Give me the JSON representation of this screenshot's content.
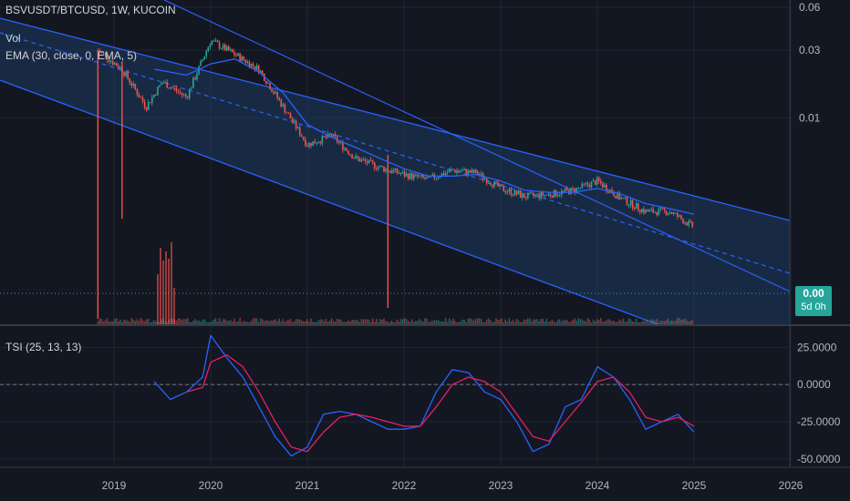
{
  "header": {
    "symbol": "BSVUSDT/BTCUSD, 1W, KUCOIN",
    "vol_label": "Vol",
    "ema_label": "EMA (30, close, 0, EMA, 5)",
    "tsi_label": "TSI (25, 13, 13)"
  },
  "price_tag": {
    "value": "0.00",
    "countdown": "5d 0h"
  },
  "colors": {
    "background": "#131722",
    "channel_fill": "#1e3a5f",
    "channel_line": "#2962ff",
    "up_candle": "#26a69a",
    "down_candle": "#ef5350",
    "tsi_line": "#2962ff",
    "tsi_signal": "#e91e63",
    "price_line": "#26a69a"
  },
  "chart_data": [
    {
      "type": "candlestick",
      "title": "BSVUSDT/BTCUSD, 1W, KUCOIN",
      "y_scale": "log",
      "y_ticks": [
        "0.06",
        "0.03",
        "0.01"
      ],
      "x_ticks": [
        "2019",
        "2020",
        "2021",
        "2022",
        "2023",
        "2024",
        "2025",
        "2026"
      ],
      "series": [
        {
          "name": "Price (close, approx.)",
          "x": [
            "2018-11",
            "2019-02",
            "2019-05",
            "2019-07",
            "2019-10",
            "2020-01",
            "2020-04",
            "2020-07",
            "2020-10",
            "2021-01",
            "2021-04",
            "2021-07",
            "2021-10",
            "2022-01",
            "2022-04",
            "2022-07",
            "2022-10",
            "2023-01",
            "2023-04",
            "2023-07",
            "2023-10",
            "2024-01",
            "2024-04",
            "2024-07",
            "2024-10",
            "2025-01"
          ],
          "values": [
            0.03,
            0.022,
            0.012,
            0.018,
            0.014,
            0.035,
            0.028,
            0.022,
            0.012,
            0.0065,
            0.0075,
            0.0052,
            0.0045,
            0.004,
            0.0037,
            0.0043,
            0.0041,
            0.0032,
            0.0028,
            0.0029,
            0.0031,
            0.0036,
            0.0027,
            0.0022,
            0.0022,
            0.0017
          ]
        },
        {
          "name": "EMA (30, close, 0, EMA, 5)",
          "x": [
            "2019-06",
            "2019-10",
            "2020-01",
            "2020-04",
            "2020-07",
            "2020-10",
            "2021-01",
            "2021-04",
            "2021-07",
            "2021-10",
            "2022-01",
            "2022-04",
            "2022-07",
            "2022-10",
            "2023-01",
            "2023-04",
            "2023-07",
            "2023-10",
            "2024-01",
            "2024-04",
            "2024-07",
            "2024-10",
            "2025-01"
          ],
          "values": [
            0.022,
            0.02,
            0.024,
            0.026,
            0.021,
            0.015,
            0.009,
            0.0073,
            0.0062,
            0.0052,
            0.0044,
            0.0039,
            0.0039,
            0.004,
            0.0036,
            0.0031,
            0.003,
            0.003,
            0.0032,
            0.0029,
            0.0025,
            0.0023,
            0.0021
          ]
        }
      ],
      "volume_spikes": [
        {
          "x": "2019-07",
          "value": "high"
        },
        {
          "x": "2021-11",
          "value": "wick"
        }
      ],
      "last_price": "0.00"
    },
    {
      "type": "line",
      "title": "TSI (25, 13, 13)",
      "y_ticks": [
        "25.0000",
        "0.0000",
        "-25.0000",
        "-50.0000"
      ],
      "ylim": [
        -55,
        35
      ],
      "series": [
        {
          "name": "TSI",
          "x": [
            "2019-06",
            "2019-08",
            "2019-10",
            "2019-12",
            "2020-01",
            "2020-03",
            "2020-05",
            "2020-07",
            "2020-09",
            "2020-11",
            "2021-01",
            "2021-03",
            "2021-05",
            "2021-07",
            "2021-09",
            "2021-11",
            "2022-01",
            "2022-03",
            "2022-05",
            "2022-07",
            "2022-09",
            "2022-11",
            "2023-01",
            "2023-03",
            "2023-05",
            "2023-07",
            "2023-09",
            "2023-11",
            "2024-01",
            "2024-03",
            "2024-05",
            "2024-07",
            "2024-09",
            "2024-11",
            "2025-01"
          ],
          "values": [
            2,
            -10,
            -5,
            5,
            33,
            18,
            5,
            -15,
            -35,
            -48,
            -42,
            -20,
            -18,
            -20,
            -25,
            -30,
            -30,
            -28,
            -5,
            10,
            8,
            -5,
            -10,
            -25,
            -45,
            -40,
            -15,
            -10,
            12,
            5,
            -10,
            -30,
            -25,
            -20,
            -32
          ]
        },
        {
          "name": "Signal",
          "x": [
            "2019-10",
            "2019-12",
            "2020-01",
            "2020-03",
            "2020-05",
            "2020-07",
            "2020-09",
            "2020-11",
            "2021-01",
            "2021-03",
            "2021-05",
            "2021-07",
            "2021-09",
            "2021-11",
            "2022-01",
            "2022-03",
            "2022-05",
            "2022-07",
            "2022-09",
            "2022-11",
            "2023-01",
            "2023-03",
            "2023-05",
            "2023-07",
            "2023-09",
            "2023-11",
            "2024-01",
            "2024-03",
            "2024-05",
            "2024-07",
            "2024-09",
            "2024-11",
            "2025-01"
          ],
          "values": [
            -5,
            -2,
            15,
            20,
            12,
            -5,
            -25,
            -42,
            -45,
            -32,
            -22,
            -20,
            -22,
            -25,
            -28,
            -28,
            -15,
            0,
            5,
            2,
            -5,
            -20,
            -35,
            -38,
            -25,
            -12,
            2,
            5,
            -5,
            -22,
            -25,
            -22,
            -28
          ]
        }
      ]
    }
  ]
}
